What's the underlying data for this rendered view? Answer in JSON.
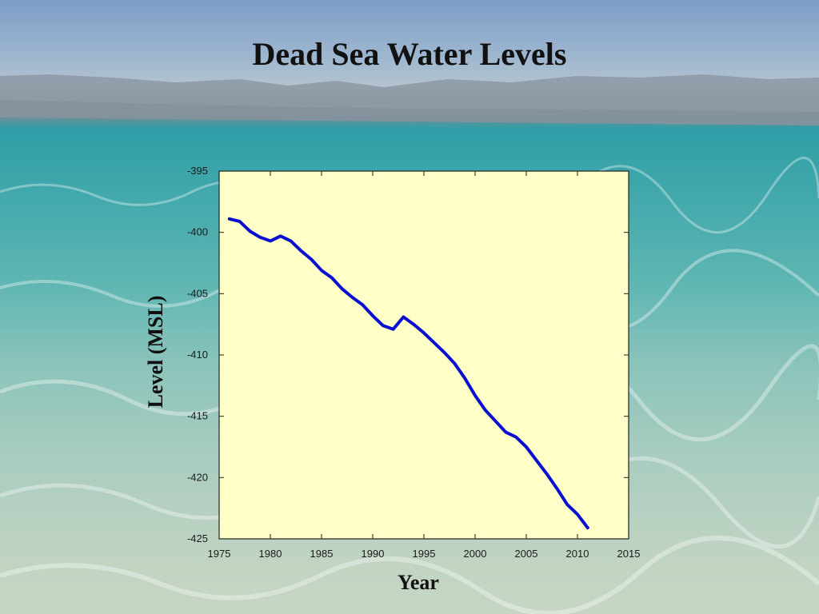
{
  "slide": {
    "title": "Dead Sea Water Levels"
  },
  "colors": {
    "plot_background": "#ffffc8",
    "line": "#0a10d0",
    "axis": "#222222"
  },
  "chart_data": {
    "type": "line",
    "title": "Dead Sea Water Levels",
    "xlabel": "Year",
    "ylabel": "Level (MSL)",
    "xlim": [
      1975,
      2015
    ],
    "ylim": [
      -425,
      -395
    ],
    "xticks": [
      1975,
      1980,
      1985,
      1990,
      1995,
      2000,
      2005,
      2010,
      2015
    ],
    "yticks": [
      -395,
      -400,
      -405,
      -410,
      -415,
      -420,
      -425
    ],
    "grid": false,
    "legend": "none",
    "series": [
      {
        "x": [
          1976,
          1977,
          1978,
          1979,
          1980,
          1981,
          1982,
          1983,
          1984,
          1985,
          1986,
          1987,
          1988,
          1989,
          1990,
          1991,
          1992,
          1993,
          1994,
          1995,
          1996,
          1997,
          1998,
          1999,
          2000,
          2001,
          2002,
          2003,
          2004,
          2005,
          2006,
          2007,
          2008,
          2009,
          2010,
          2011
        ],
        "y": [
          -398.9,
          -399.1,
          -399.9,
          -400.4,
          -400.7,
          -400.3,
          -400.7,
          -401.5,
          -402.2,
          -403.1,
          -403.7,
          -404.6,
          -405.3,
          -405.9,
          -406.8,
          -407.6,
          -407.9,
          -406.9,
          -407.5,
          -408.2,
          -409.0,
          -409.8,
          -410.7,
          -411.9,
          -413.3,
          -414.5,
          -415.4,
          -416.3,
          -416.7,
          -417.5,
          -418.6,
          -419.7,
          -420.9,
          -422.2,
          -423.0,
          -424.1
        ]
      }
    ]
  }
}
